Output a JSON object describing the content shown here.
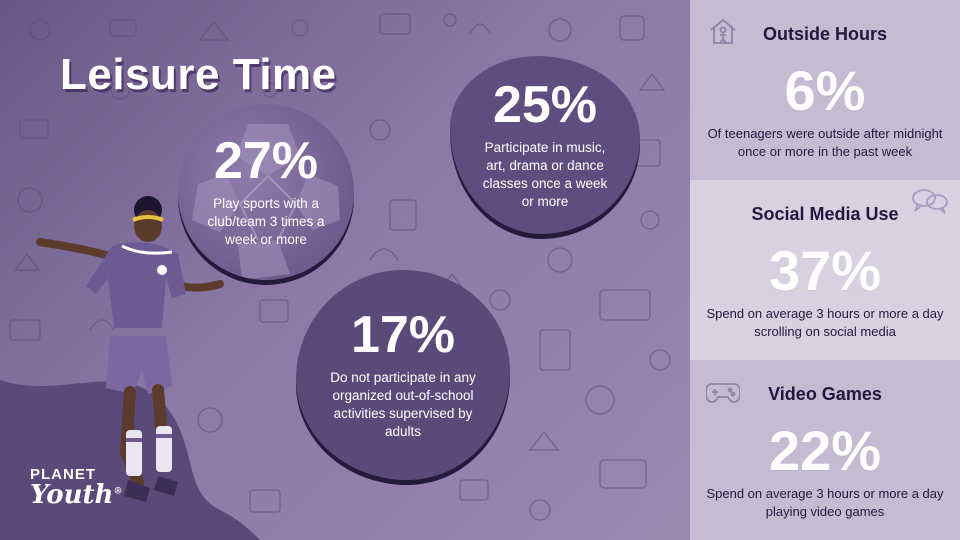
{
  "title": "Leisure Time",
  "stats": [
    {
      "percent": "27%",
      "description": "Play sports with a club/team 3 times a week or more"
    },
    {
      "percent": "25%",
      "description": "Participate in music, art, drama or dance classes once a week or more"
    },
    {
      "percent": "17%",
      "description": "Do not participate in any organized out-of-school activities supervised by adults"
    }
  ],
  "panels": [
    {
      "heading": "Outside Hours",
      "percent": "6%",
      "description": "Of teenagers were outside after midnight once or more in the past week",
      "icon": "house-person-icon"
    },
    {
      "heading": "Social Media Use",
      "percent": "37%",
      "description": "Spend on average 3 hours or more a day scrolling on social media",
      "icon": "chat-bubbles-icon"
    },
    {
      "heading": "Video Games",
      "percent": "22%",
      "description": "Spend on average 3 hours or more a day playing video games",
      "icon": "gamepad-icon"
    }
  ],
  "logo": {
    "line1": "PLANET",
    "line2": "Youth",
    "mark": "®"
  },
  "colors": {
    "accent": "#5e4d7f",
    "background": "#7b6898",
    "panel_light": "#d8d1e2",
    "panel_mid": "#c5bcd4"
  }
}
